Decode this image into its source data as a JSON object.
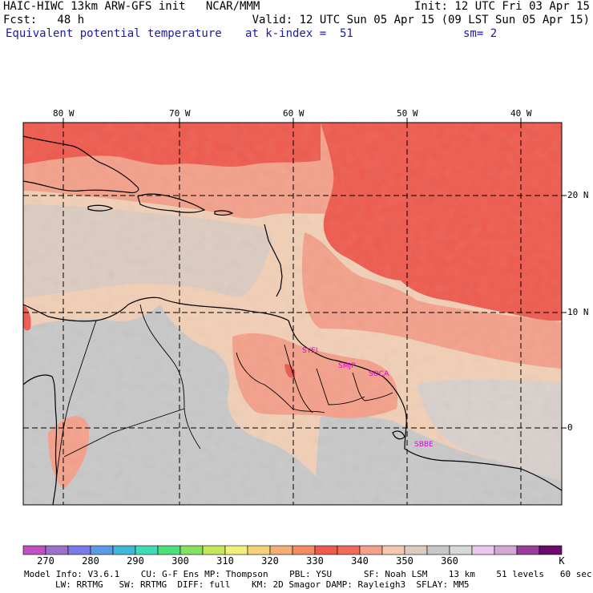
{
  "header": {
    "left_line1": "HAIC-HIWC 13km ARW-GFS init   NCAR/MMM",
    "left_line2": "Fcst:   48 h",
    "left_line3": "Equivalent potential temperature",
    "right_line1": "Init: 12 UTC Fri 03 Apr 15",
    "right_line2": "Valid: 12 UTC Sun 05 Apr 15 (09 LST Sun 05 Apr 15)",
    "center_line3": "at k-index =  51",
    "right_line3": "sm= 2"
  },
  "map": {
    "longitude_labels": [
      "80 W",
      "70 W",
      "60 W",
      "50 W",
      "40 W"
    ],
    "latitude_labels": [
      "20 N",
      "10 N",
      "0"
    ],
    "stations": [
      {
        "id": "SYEI",
        "label": "SYEI"
      },
      {
        "id": "SMJP",
        "label": "SMJP"
      },
      {
        "id": "SOCA",
        "label": "SOCA"
      },
      {
        "id": "SBBE",
        "label": "SBBE"
      }
    ]
  },
  "colorbar": {
    "colors": [
      "#c14fc6",
      "#9a71cb",
      "#7a7ae8",
      "#5b9be6",
      "#3fb9d9",
      "#3fdcb6",
      "#4ce07a",
      "#88e060",
      "#c4e85a",
      "#f0f07a",
      "#f6d07a",
      "#f4ae72",
      "#f38a62",
      "#ef5a4e",
      "#f26a5a",
      "#f4a08a",
      "#f4c8b0",
      "#dccbc0",
      "#c8c8c8",
      "#d8d8d8",
      "#ecc6ec",
      "#d4a8d4",
      "#9a3c9a",
      "#6e0a6e"
    ],
    "tick_labels": [
      "270",
      "280",
      "290",
      "300",
      "310",
      "320",
      "330",
      "340",
      "350",
      "360",
      "K"
    ]
  },
  "footer": {
    "line1": "Model Info: V3.6.1    CU: G-F Ens MP: Thompson    PBL: YSU      SF: Noah LSM    13 km    51 levels   60 sec",
    "line2": "LW: RRTMG   SW: RRTMG  DIFF: full    KM: 2D Smagor DAMP: Rayleigh3  SFLAY: MM5"
  }
}
